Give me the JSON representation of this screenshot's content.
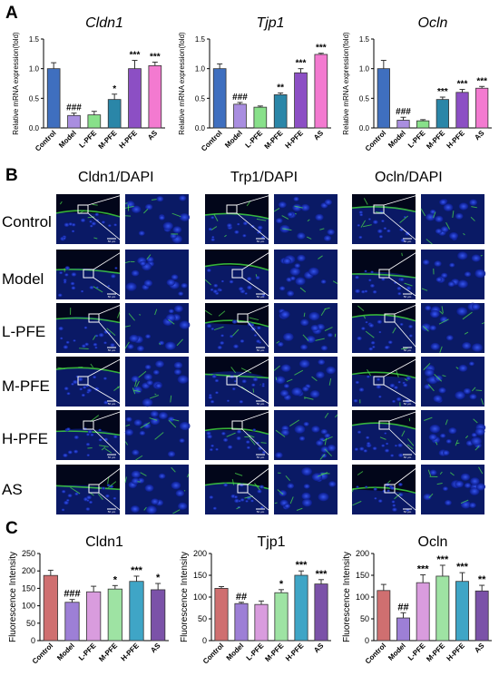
{
  "panels": {
    "a_letter": "A",
    "b_letter": "B",
    "c_letter": "C"
  },
  "groups": [
    "Control",
    "Model",
    "L-PFE",
    "M-PFE",
    "H-PFE",
    "AS"
  ],
  "colors": {
    "qpcr": [
      "#3f6fbf",
      "#a98ee0",
      "#88e08a",
      "#2a86a8",
      "#8c4fc4",
      "#f37ad0"
    ],
    "fluor": [
      "#cf6f70",
      "#9d7fd6",
      "#d99cde",
      "#9ee3a3",
      "#3fa5c6",
      "#7b52a8"
    ],
    "bar_edge": "#333333"
  },
  "panel_a_ylabel": "Relative mRNA expression(fold)",
  "panel_c_ylabel": "Fluorescence Intensity",
  "if_images": {
    "column_titles": [
      "Cldn1/DAPI",
      "Trp1/DAPI",
      "Ocln/DAPI"
    ],
    "row_labels": [
      "Control",
      "Model",
      "L-PFE",
      "M-PFE",
      "H-PFE",
      "AS"
    ],
    "scale_text": "50 μm"
  },
  "chart_data": [
    {
      "type": "bar",
      "title": "Cldn1",
      "ylabel": "Relative mRNA expression(fold)",
      "categories": [
        "Control",
        "Model",
        "L-PFE",
        "M-PFE",
        "H-PFE",
        "AS"
      ],
      "values": [
        1.0,
        0.21,
        0.22,
        0.48,
        1.0,
        1.05
      ],
      "errors": [
        0.1,
        0.04,
        0.06,
        0.09,
        0.14,
        0.06
      ],
      "annotations": [
        "",
        "###",
        "",
        "*",
        "***",
        "***"
      ],
      "ylim": [
        0,
        1.5
      ],
      "yticks": [
        "0.0",
        "0.5",
        "1.0",
        "1.5"
      ]
    },
    {
      "type": "bar",
      "title": "Tjp1",
      "ylabel": "Relative mRNA expression(fold)",
      "categories": [
        "Control",
        "Model",
        "L-PFE",
        "M-PFE",
        "H-PFE",
        "AS"
      ],
      "values": [
        1.0,
        0.4,
        0.35,
        0.56,
        0.93,
        1.24
      ],
      "errors": [
        0.08,
        0.03,
        0.02,
        0.03,
        0.07,
        0.02
      ],
      "annotations": [
        "",
        "###",
        "",
        "**",
        "***",
        "***"
      ],
      "ylim": [
        0,
        1.5
      ],
      "yticks": [
        "0.0",
        "0.5",
        "1.0",
        "1.5"
      ]
    },
    {
      "type": "bar",
      "title": "Ocln",
      "ylabel": "Relative mRNA expression(fold)",
      "categories": [
        "Control",
        "Model",
        "L-PFE",
        "M-PFE",
        "H-PFE",
        "AS"
      ],
      "values": [
        1.0,
        0.13,
        0.12,
        0.48,
        0.6,
        0.67
      ],
      "errors": [
        0.14,
        0.05,
        0.02,
        0.04,
        0.05,
        0.03
      ],
      "annotations": [
        "",
        "###",
        "",
        "***",
        "***",
        "***"
      ],
      "ylim": [
        0,
        1.5
      ],
      "yticks": [
        "0.0",
        "0.5",
        "1.0",
        "1.5"
      ]
    },
    {
      "type": "bar",
      "title": "Cldn1",
      "ylabel": "Fluorescence Intensity",
      "categories": [
        "Control",
        "Model",
        "L-PFE",
        "M-PFE",
        "H-PFE",
        "AS"
      ],
      "values": [
        187,
        110,
        140,
        148,
        170,
        146
      ],
      "errors": [
        15,
        8,
        16,
        10,
        15,
        18
      ],
      "annotations": [
        "",
        "###",
        "",
        "*",
        "***",
        "*"
      ],
      "ylim": [
        0,
        250
      ],
      "yticks": [
        "0",
        "50",
        "100",
        "150",
        "200",
        "250"
      ]
    },
    {
      "type": "bar",
      "title": "Tjp1",
      "ylabel": "Fluorescence Intensity",
      "categories": [
        "Control",
        "Model",
        "L-PFE",
        "M-PFE",
        "H-PFE",
        "AS"
      ],
      "values": [
        120,
        85,
        83,
        110,
        150,
        130
      ],
      "errors": [
        4,
        3,
        8,
        7,
        10,
        10
      ],
      "annotations": [
        "",
        "##",
        "",
        "*",
        "***",
        "***"
      ],
      "ylim": [
        0,
        200
      ],
      "yticks": [
        "0",
        "50",
        "100",
        "150",
        "200"
      ]
    },
    {
      "type": "bar",
      "title": "Ocln",
      "ylabel": "Fluorescence Intensity",
      "categories": [
        "Control",
        "Model",
        "L-PFE",
        "M-PFE",
        "H-PFE",
        "AS"
      ],
      "values": [
        115,
        52,
        133,
        148,
        136,
        114
      ],
      "errors": [
        14,
        12,
        18,
        25,
        20,
        13
      ],
      "annotations": [
        "",
        "##",
        "***",
        "***",
        "***",
        "**"
      ],
      "ylim": [
        0,
        200
      ],
      "yticks": [
        "0",
        "50",
        "100",
        "150",
        "200"
      ]
    }
  ]
}
